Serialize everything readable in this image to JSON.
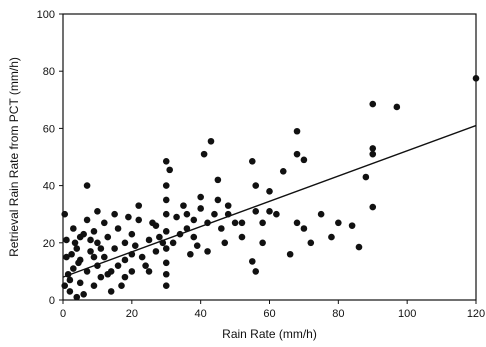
{
  "chart_data": {
    "type": "scatter",
    "title": "",
    "xlabel": "Rain Rate (mm/h)",
    "ylabel": "Retrieval Rain Rate from PCT (mm/h)",
    "xlim": [
      0,
      120
    ],
    "ylim": [
      0,
      100
    ],
    "xticks": [
      0,
      20,
      40,
      60,
      80,
      100,
      120
    ],
    "yticks": [
      0,
      20,
      40,
      60,
      80,
      100
    ],
    "grid": false,
    "legend": "none",
    "fit_line": {
      "x": [
        0,
        120
      ],
      "y": [
        8,
        61
      ]
    },
    "series": [
      {
        "points": [
          [
            120,
            77.5
          ],
          [
            97,
            67.5
          ],
          [
            90,
            68.5
          ],
          [
            90,
            53
          ],
          [
            90,
            51
          ],
          [
            88,
            43
          ],
          [
            90,
            32.5
          ],
          [
            86,
            18.5
          ],
          [
            78,
            22
          ],
          [
            72,
            20
          ],
          [
            70,
            49
          ],
          [
            68,
            59
          ],
          [
            68,
            51
          ],
          [
            68,
            27
          ],
          [
            70,
            25
          ],
          [
            66,
            16
          ],
          [
            75,
            30
          ],
          [
            80,
            27
          ],
          [
            60,
            38
          ],
          [
            60,
            31
          ],
          [
            58,
            27
          ],
          [
            55,
            48.5
          ],
          [
            56,
            40
          ],
          [
            56,
            31
          ],
          [
            55,
            13.5
          ],
          [
            56,
            10
          ],
          [
            52,
            27
          ],
          [
            50,
            27
          ],
          [
            48,
            30
          ],
          [
            47,
            20
          ],
          [
            45,
            42
          ],
          [
            45,
            35
          ],
          [
            43,
            55.5
          ],
          [
            41,
            51
          ],
          [
            42,
            27
          ],
          [
            42,
            17
          ],
          [
            40,
            32
          ],
          [
            38,
            28
          ],
          [
            38,
            22
          ],
          [
            37,
            16
          ],
          [
            36,
            25
          ],
          [
            35,
            33
          ],
          [
            33,
            29
          ],
          [
            32,
            20
          ],
          [
            31,
            45.5
          ],
          [
            30,
            48.5
          ],
          [
            30,
            40
          ],
          [
            30,
            35
          ],
          [
            30,
            30
          ],
          [
            30,
            24
          ],
          [
            30,
            18
          ],
          [
            30,
            13
          ],
          [
            30,
            9
          ],
          [
            30,
            5
          ],
          [
            28,
            22
          ],
          [
            27,
            17
          ],
          [
            26,
            27
          ],
          [
            25,
            21
          ],
          [
            24,
            12
          ],
          [
            22,
            33
          ],
          [
            22,
            28
          ],
          [
            20,
            23
          ],
          [
            20,
            16
          ],
          [
            20,
            10
          ],
          [
            19,
            29
          ],
          [
            18,
            20
          ],
          [
            18,
            14
          ],
          [
            17,
            5
          ],
          [
            16,
            25
          ],
          [
            15,
            30
          ],
          [
            15,
            18
          ],
          [
            14,
            10
          ],
          [
            14,
            3
          ],
          [
            13,
            22
          ],
          [
            12,
            27
          ],
          [
            12,
            15
          ],
          [
            11,
            8
          ],
          [
            10,
            31
          ],
          [
            10,
            20
          ],
          [
            10,
            12
          ],
          [
            9,
            24
          ],
          [
            9,
            5
          ],
          [
            8,
            17
          ],
          [
            7,
            40
          ],
          [
            7,
            28
          ],
          [
            7,
            10
          ],
          [
            6,
            2
          ],
          [
            5,
            22
          ],
          [
            5,
            14
          ],
          [
            5,
            6
          ],
          [
            4,
            18
          ],
          [
            4,
            1
          ],
          [
            3,
            25
          ],
          [
            3,
            11
          ],
          [
            2,
            7
          ],
          [
            2,
            3
          ],
          [
            1,
            15
          ],
          [
            1,
            21
          ],
          [
            0.5,
            30
          ],
          [
            0.5,
            5
          ],
          [
            1.5,
            9
          ],
          [
            2.5,
            16
          ],
          [
            3.5,
            20
          ],
          [
            4.5,
            13
          ],
          [
            6,
            23
          ],
          [
            8,
            21
          ],
          [
            9,
            15
          ],
          [
            11,
            18
          ],
          [
            13,
            9
          ],
          [
            16,
            12
          ],
          [
            18,
            8
          ],
          [
            21,
            19
          ],
          [
            23,
            15
          ],
          [
            25,
            10
          ],
          [
            27,
            26
          ],
          [
            29,
            20
          ],
          [
            34,
            23
          ],
          [
            39,
            19
          ],
          [
            44,
            30
          ],
          [
            46,
            25
          ],
          [
            48,
            33
          ],
          [
            52,
            22
          ],
          [
            62,
            30
          ],
          [
            64,
            45
          ],
          [
            84,
            26
          ],
          [
            58,
            20
          ],
          [
            36,
            30
          ],
          [
            40,
            36
          ]
        ]
      }
    ]
  }
}
